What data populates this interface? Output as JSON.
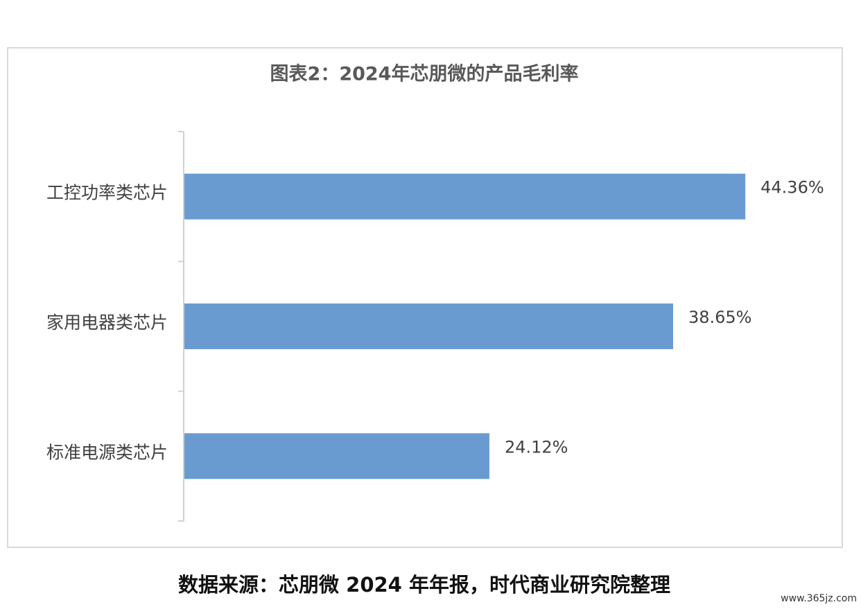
{
  "chart_data": {
    "type": "bar",
    "orientation": "horizontal",
    "title": "图表2：2024年芯朋微的产品毛利率",
    "categories": [
      "工控功率类芯片",
      "家用电器类芯片",
      "标准电源类芯片"
    ],
    "values": [
      44.36,
      38.65,
      24.12
    ],
    "value_labels": [
      "44.36%",
      "38.65%",
      "24.12%"
    ],
    "color": "#6a9bd0",
    "xlim": [
      0,
      50
    ],
    "source": "数据来源：芯朋微 2024 年年报，时代商业研究院整理",
    "watermark": "www.365jz.com"
  }
}
